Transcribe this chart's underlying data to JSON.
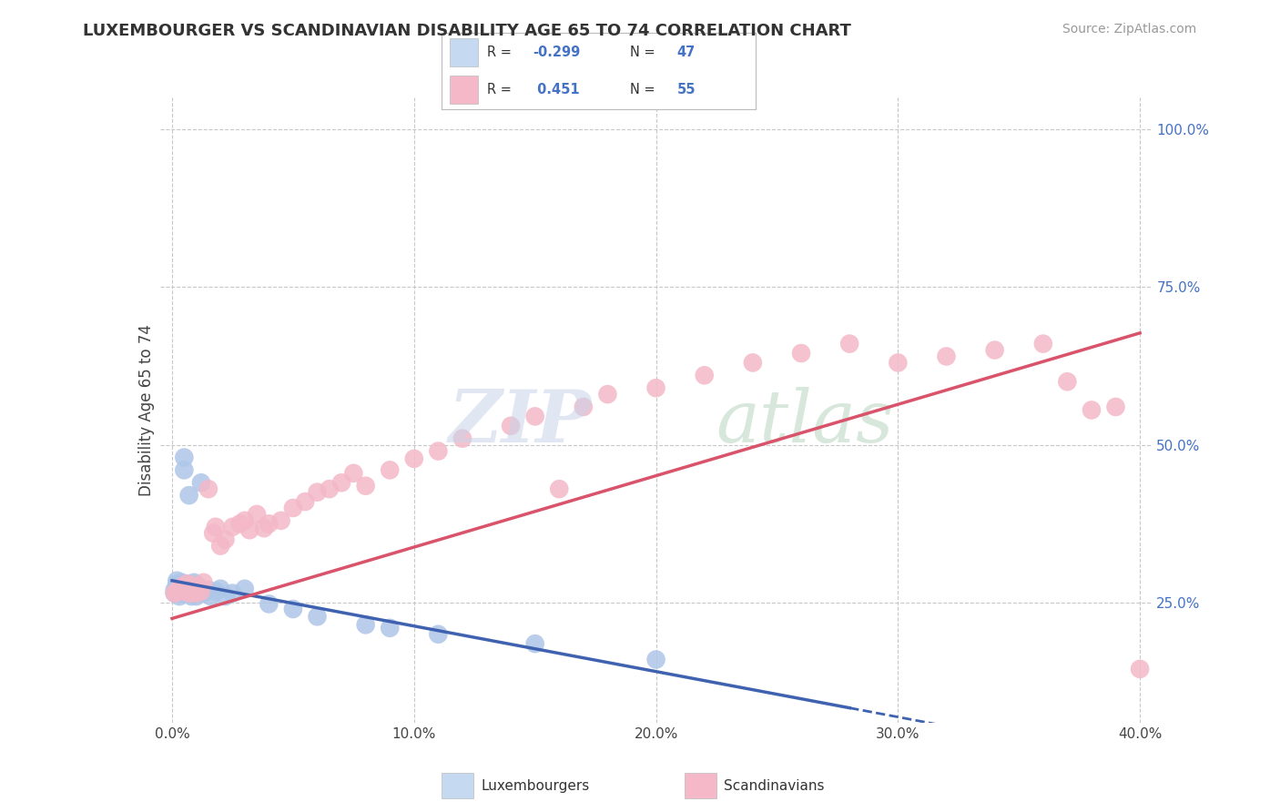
{
  "title": "LUXEMBOURGER VS SCANDINAVIAN DISABILITY AGE 65 TO 74 CORRELATION CHART",
  "source_text": "Source: ZipAtlas.com",
  "ylabel": "Disability Age 65 to 74",
  "xlim": [
    -0.005,
    0.405
  ],
  "ylim": [
    0.06,
    1.05
  ],
  "xtick_labels": [
    "0.0%",
    "10.0%",
    "20.0%",
    "30.0%",
    "40.0%"
  ],
  "xtick_vals": [
    0.0,
    0.1,
    0.2,
    0.3,
    0.4
  ],
  "ytick_labels_right": [
    "25.0%",
    "50.0%",
    "75.0%",
    "100.0%"
  ],
  "ytick_vals_right": [
    0.25,
    0.5,
    0.75,
    1.0
  ],
  "blue_color": "#aec6e8",
  "blue_line_color": "#3f62b0",
  "pink_color": "#f4b8c8",
  "pink_line_color": "#d9536a",
  "legend_box_blue": "#c5d9f1",
  "legend_box_pink": "#f4b8c8",
  "R_blue": -0.299,
  "N_blue": 47,
  "R_pink": 0.451,
  "N_pink": 55,
  "grid_color": "#c8c8c8",
  "blue_intercept": 0.285,
  "blue_slope": -0.72,
  "pink_intercept": 0.225,
  "pink_slope": 1.13
}
